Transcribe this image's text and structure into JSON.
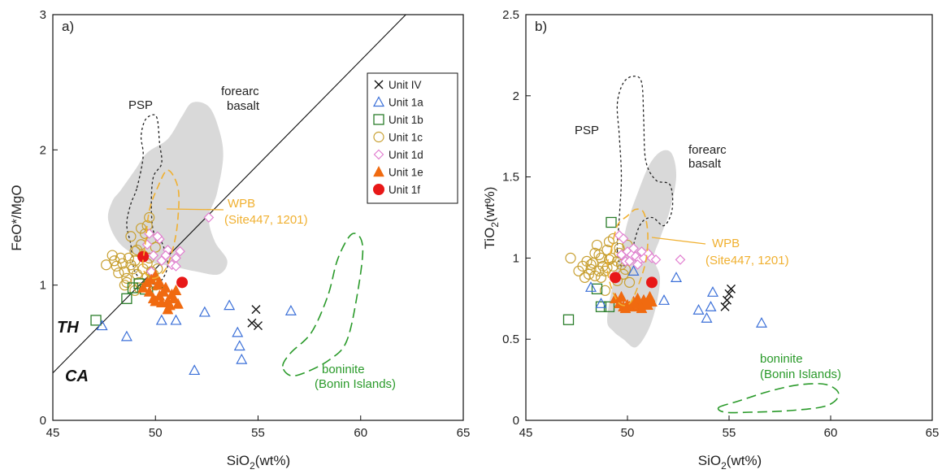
{
  "chart_data": [
    {
      "type": "scatter",
      "panel_label": "a)",
      "xlabel_main": "SiO",
      "xlabel_sub": "2",
      "xlabel_suffix": "(wt%)",
      "ylabel_main": "FeO*/MgO",
      "xlim": [
        45,
        65
      ],
      "ylim": [
        0,
        3
      ],
      "xticks": [
        45,
        50,
        55,
        60,
        65
      ],
      "yticks": [
        0,
        1,
        2,
        3
      ],
      "xtick_labels": [
        "45",
        "50",
        "55",
        "60",
        "65"
      ],
      "ytick_labels": [
        "0",
        "1",
        "2",
        "3"
      ],
      "legend_position": "top-right",
      "legend": [
        "Unit IV",
        "Unit 1a",
        "Unit 1b",
        "Unit 1c",
        "Unit 1d",
        "Unit 1e",
        "Unit 1f"
      ],
      "divider_line": [
        [
          45,
          0.35
        ],
        [
          62.2,
          3.0
        ]
      ],
      "region_labels": {
        "th": "TH",
        "ca": "CA",
        "psp": "PSP",
        "forearc_1": "forearc",
        "forearc_2": "basalt",
        "wpb_1": "WPB",
        "wpb_2": "(Site447, 1201)",
        "boninite_1": "boninite",
        "boninite_2": "(Bonin Islands)"
      },
      "regions": {
        "forearc": [
          [
            48.3,
            1.7
          ],
          [
            49.0,
            1.85
          ],
          [
            49.6,
            1.98
          ],
          [
            50.6,
            2.08
          ],
          [
            51.3,
            2.25
          ],
          [
            51.8,
            2.35
          ],
          [
            52.6,
            2.32
          ],
          [
            53.1,
            2.15
          ],
          [
            53.3,
            1.95
          ],
          [
            53.0,
            1.68
          ],
          [
            52.6,
            1.5
          ],
          [
            52.9,
            1.32
          ],
          [
            53.5,
            1.18
          ],
          [
            53.1,
            1.08
          ],
          [
            52.0,
            1.1
          ],
          [
            50.8,
            1.14
          ],
          [
            49.6,
            1.18
          ],
          [
            48.3,
            1.3
          ],
          [
            47.7,
            1.48
          ],
          [
            47.9,
            1.62
          ]
        ],
        "psp": [
          [
            49.1,
            1.72
          ],
          [
            49.4,
            1.95
          ],
          [
            49.3,
            2.1
          ],
          [
            49.5,
            2.22
          ],
          [
            49.9,
            2.26
          ],
          [
            50.1,
            2.22
          ],
          [
            50.2,
            2.05
          ],
          [
            50.3,
            1.9
          ],
          [
            49.9,
            1.8
          ],
          [
            49.8,
            1.6
          ],
          [
            49.9,
            1.4
          ],
          [
            50.3,
            1.32
          ],
          [
            50.6,
            1.15
          ],
          [
            50.2,
            1.02
          ],
          [
            49.6,
            1.02
          ],
          [
            49.0,
            1.1
          ],
          [
            48.8,
            1.3
          ],
          [
            48.6,
            1.45
          ],
          [
            48.8,
            1.6
          ]
        ],
        "wpb": [
          [
            49.5,
            1.3
          ],
          [
            49.7,
            1.55
          ],
          [
            50.1,
            1.72
          ],
          [
            50.6,
            1.85
          ],
          [
            51.1,
            1.72
          ],
          [
            51.1,
            1.5
          ],
          [
            50.9,
            1.3
          ],
          [
            50.5,
            1.12
          ],
          [
            49.9,
            1.05
          ],
          [
            49.4,
            1.12
          ]
        ],
        "boninite": [
          [
            56.2,
            0.4
          ],
          [
            56.6,
            0.5
          ],
          [
            57.6,
            0.65
          ],
          [
            58.4,
            0.92
          ],
          [
            58.9,
            1.2
          ],
          [
            59.6,
            1.38
          ],
          [
            60.1,
            1.28
          ],
          [
            59.8,
            0.9
          ],
          [
            59.3,
            0.58
          ],
          [
            58.5,
            0.45
          ],
          [
            57.4,
            0.36
          ],
          [
            56.6,
            0.33
          ]
        ]
      },
      "series": [
        {
          "name": "Unit IV",
          "x": [
            54.9,
            55.0,
            54.7
          ],
          "y": [
            0.82,
            0.7,
            0.72
          ]
        },
        {
          "name": "Unit 1a",
          "x": [
            47.4,
            48.6,
            50.3,
            51.0,
            51.9,
            52.4,
            53.6,
            54.0,
            54.1,
            54.2,
            56.6
          ],
          "y": [
            0.7,
            0.62,
            0.74,
            0.74,
            0.37,
            0.8,
            0.85,
            0.65,
            0.55,
            0.45,
            0.81
          ]
        },
        {
          "name": "Unit 1b",
          "x": [
            47.1,
            48.6,
            48.9,
            49.2,
            49.5,
            50.1
          ],
          "y": [
            0.74,
            0.9,
            0.98,
            1.01,
            0.97,
            0.95
          ]
        },
        {
          "name": "Unit 1c",
          "x": [
            47.6,
            47.9,
            48.0,
            48.1,
            48.3,
            48.4,
            48.5,
            48.6,
            48.7,
            48.8,
            48.9,
            49.0,
            49.0,
            49.1,
            49.2,
            49.3,
            49.4,
            49.5,
            49.6,
            49.7,
            49.8,
            49.9,
            50.0,
            48.2,
            48.6,
            49.2,
            49.4,
            49.6,
            49.8,
            50.0,
            48.8,
            49.1,
            49.6,
            49.9,
            49.3,
            49.0,
            48.5,
            49.7,
            50.1
          ],
          "y": [
            1.15,
            1.22,
            1.18,
            1.14,
            1.2,
            1.16,
            1.1,
            1.05,
            1.2,
            1.15,
            1.12,
            1.18,
            1.25,
            1.08,
            1.02,
            1.3,
            1.22,
            1.38,
            1.44,
            1.5,
            1.1,
            1.05,
            1.0,
            1.09,
            1.02,
            0.98,
            1.12,
            1.06,
            1.34,
            1.28,
            1.36,
            1.26,
            1.16,
            1.08,
            1.42,
            0.96,
            1.0,
            1.2,
            1.12
          ]
        },
        {
          "name": "Unit 1d",
          "x": [
            49.7,
            50.2,
            50.6,
            51.0,
            51.2,
            49.6,
            49.9,
            50.3,
            50.5,
            50.8,
            51.0,
            49.8,
            50.1,
            52.6
          ],
          "y": [
            1.38,
            1.34,
            1.26,
            1.2,
            1.25,
            1.3,
            1.22,
            1.18,
            1.22,
            1.15,
            1.14,
            1.1,
            1.36,
            1.5
          ]
        },
        {
          "name": "Unit 1e",
          "x": [
            49.4,
            49.7,
            49.8,
            50.0,
            50.1,
            50.2,
            50.3,
            50.5,
            50.6,
            50.7,
            50.9,
            51.1,
            49.9,
            50.4,
            50.8,
            49.6,
            50.2,
            51.0,
            50.0,
            50.6
          ],
          "y": [
            0.98,
            0.95,
            1.04,
            1.07,
            1.0,
            0.92,
            0.87,
            0.98,
            0.88,
            0.85,
            0.9,
            0.86,
            0.9,
            0.95,
            0.93,
            1.02,
            1.02,
            0.96,
            0.88,
            0.82
          ]
        },
        {
          "name": "Unit 1f",
          "x": [
            49.4,
            51.3
          ],
          "y": [
            1.21,
            1.02
          ]
        }
      ]
    },
    {
      "type": "scatter",
      "panel_label": "b)",
      "xlabel_main": "SiO",
      "xlabel_sub": "2",
      "xlabel_suffix": "(wt%)",
      "ylabel_main": "TiO",
      "ylabel_sub": "2",
      "ylabel_suffix": "(wt%)",
      "xlim": [
        45,
        65
      ],
      "ylim": [
        0,
        2.5
      ],
      "xticks": [
        45,
        50,
        55,
        60,
        65
      ],
      "yticks": [
        0,
        0.5,
        1,
        1.5,
        2,
        2.5
      ],
      "xtick_labels": [
        "45",
        "50",
        "55",
        "60",
        "65"
      ],
      "ytick_labels": [
        "0",
        "0.5",
        "1",
        "1.5",
        "2",
        "2.5"
      ],
      "region_labels": {
        "psp": "PSP",
        "forearc_1": "forearc",
        "forearc_2": "basalt",
        "wpb_1": "WPB",
        "wpb_2": "(Site447, 1201)",
        "boninite_1": "boninite",
        "boninite_2": "(Bonin Islands)"
      },
      "regions": {
        "forearc": [
          [
            49.0,
            0.62
          ],
          [
            49.3,
            0.85
          ],
          [
            49.7,
            1.05
          ],
          [
            50.0,
            1.22
          ],
          [
            50.5,
            1.4
          ],
          [
            51.1,
            1.58
          ],
          [
            51.7,
            1.66
          ],
          [
            52.2,
            1.64
          ],
          [
            52.4,
            1.5
          ],
          [
            52.1,
            1.3
          ],
          [
            51.6,
            1.12
          ],
          [
            51.3,
            1.0
          ],
          [
            51.6,
            0.88
          ],
          [
            51.4,
            0.7
          ],
          [
            51.0,
            0.55
          ],
          [
            50.4,
            0.45
          ],
          [
            49.8,
            0.5
          ],
          [
            49.3,
            0.55
          ]
        ],
        "psp": [
          [
            49.5,
            1.05
          ],
          [
            49.6,
            1.25
          ],
          [
            49.7,
            1.5
          ],
          [
            49.6,
            1.75
          ],
          [
            49.5,
            1.95
          ],
          [
            49.8,
            2.08
          ],
          [
            50.3,
            2.12
          ],
          [
            50.7,
            2.08
          ],
          [
            50.8,
            1.85
          ],
          [
            50.9,
            1.6
          ],
          [
            51.4,
            1.48
          ],
          [
            52.1,
            1.45
          ],
          [
            52.2,
            1.3
          ],
          [
            51.8,
            1.2
          ],
          [
            51.2,
            1.25
          ],
          [
            50.6,
            1.2
          ],
          [
            50.1,
            1.0
          ],
          [
            49.7,
            0.95
          ]
        ],
        "wpb": [
          [
            49.2,
            1.05
          ],
          [
            49.5,
            1.2
          ],
          [
            50.0,
            1.26
          ],
          [
            50.4,
            1.3
          ],
          [
            50.8,
            1.28
          ],
          [
            51.0,
            1.15
          ],
          [
            50.9,
            0.98
          ],
          [
            50.5,
            0.82
          ],
          [
            50.1,
            0.72
          ],
          [
            49.6,
            0.72
          ],
          [
            49.2,
            0.82
          ],
          [
            49.0,
            0.95
          ]
        ],
        "boninite": [
          [
            54.5,
            0.08
          ],
          [
            55.5,
            0.12
          ],
          [
            57.0,
            0.18
          ],
          [
            58.5,
            0.22
          ],
          [
            59.8,
            0.22
          ],
          [
            60.4,
            0.16
          ],
          [
            59.8,
            0.09
          ],
          [
            58.0,
            0.06
          ],
          [
            56.0,
            0.05
          ],
          [
            54.8,
            0.05
          ]
        ]
      },
      "series": [
        {
          "name": "Unit IV",
          "x": [
            55.1,
            55.0,
            54.9,
            54.8
          ],
          "y": [
            0.81,
            0.78,
            0.74,
            0.7
          ]
        },
        {
          "name": "Unit 1a",
          "x": [
            48.2,
            48.7,
            50.3,
            50.8,
            51.8,
            52.4,
            53.5,
            53.9,
            54.1,
            54.2,
            56.6
          ],
          "y": [
            0.82,
            0.72,
            0.92,
            0.74,
            0.74,
            0.88,
            0.68,
            0.63,
            0.7,
            0.79,
            0.6
          ]
        },
        {
          "name": "Unit 1b",
          "x": [
            47.1,
            48.5,
            48.7,
            49.1,
            49.2
          ],
          "y": [
            0.62,
            0.81,
            0.7,
            0.7,
            1.22
          ]
        },
        {
          "name": "Unit 1c",
          "x": [
            47.2,
            47.6,
            47.8,
            47.9,
            48.0,
            48.2,
            48.3,
            48.4,
            48.5,
            48.6,
            48.7,
            48.8,
            48.9,
            49.0,
            49.1,
            49.2,
            49.3,
            49.4,
            49.5,
            49.6,
            49.7,
            49.8,
            49.9,
            50.0,
            48.1,
            48.4,
            48.7,
            49.0,
            49.3,
            49.6,
            48.9,
            49.5,
            48.2,
            49.1,
            48.6,
            50.1
          ],
          "y": [
            1.0,
            0.92,
            0.95,
            0.88,
            0.98,
            0.93,
            0.97,
            0.89,
            1.08,
            1.02,
            1.0,
            0.95,
            0.92,
            1.05,
            1.1,
            1.0,
            0.95,
            0.88,
            0.98,
            1.03,
            0.96,
            0.9,
            0.93,
            1.08,
            0.9,
            1.03,
            0.88,
            0.94,
            1.12,
            1.06,
            0.8,
            0.86,
            0.96,
            0.99,
            0.92,
            0.85
          ]
        },
        {
          "name": "Unit 1d",
          "x": [
            49.6,
            49.8,
            50.0,
            50.2,
            50.4,
            50.6,
            50.8,
            51.0,
            51.2,
            49.9,
            50.3,
            50.7,
            51.4,
            52.6,
            49.7,
            50.1,
            50.5
          ],
          "y": [
            1.14,
            1.12,
            1.04,
            1.02,
            1.01,
            0.99,
            1.0,
            1.03,
            1.0,
            0.98,
            1.06,
            1.04,
            0.99,
            0.99,
            1.02,
            0.98,
            0.96
          ]
        },
        {
          "name": "Unit 1e",
          "x": [
            49.4,
            49.6,
            49.8,
            50.0,
            50.2,
            50.4,
            50.6,
            50.8,
            51.0,
            51.2,
            49.7,
            50.1,
            50.5,
            50.9,
            49.9,
            50.3,
            50.7,
            51.1
          ],
          "y": [
            0.75,
            0.72,
            0.7,
            0.71,
            0.7,
            0.72,
            0.7,
            0.74,
            0.71,
            0.73,
            0.76,
            0.7,
            0.75,
            0.72,
            0.69,
            0.73,
            0.69,
            0.76
          ]
        },
        {
          "name": "Unit 1f",
          "x": [
            49.4,
            51.2
          ],
          "y": [
            0.88,
            0.85
          ]
        }
      ]
    }
  ],
  "style": {
    "unit_iv": "#111111",
    "unit_1a": "#3a6fd8",
    "unit_1b": "#2a7d2a",
    "unit_1c": "#c8a032",
    "unit_1d": "#e27fd0",
    "unit_1e": "#f06a10",
    "unit_1f": "#e81818",
    "forearc_fill": "#d9d9d9",
    "wpb_line": "#f0b030",
    "boninite_line": "#2a9a2a",
    "psp_line": "#222222"
  }
}
